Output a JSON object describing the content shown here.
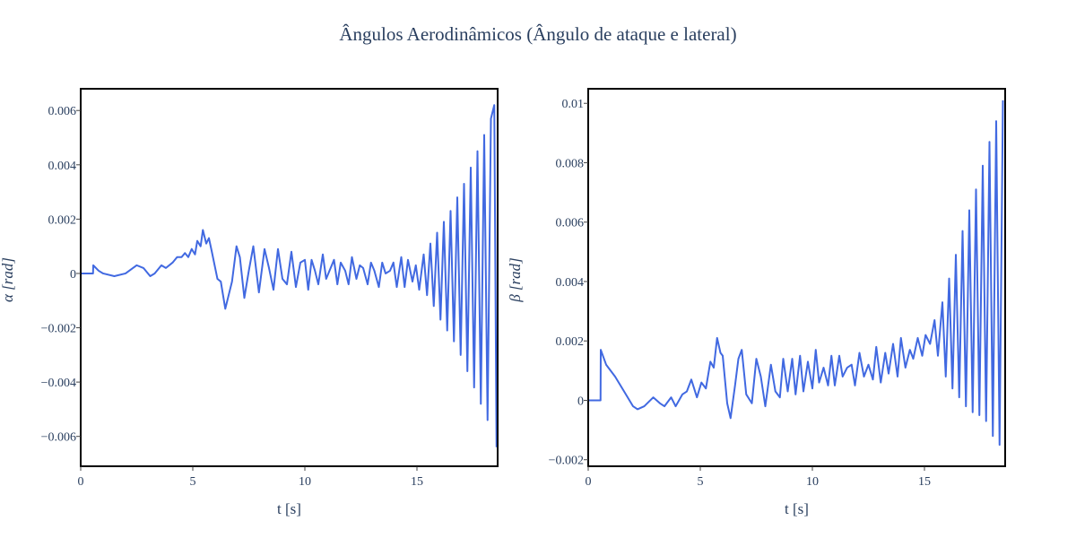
{
  "title": "Ângulos Aerodinâmicos (Ângulo de ataque e lateral)",
  "line_color": "#4169E1",
  "chart_data": [
    {
      "type": "line",
      "xlabel": "t [s]",
      "ylabel_symbol": "α",
      "ylabel_unit": "[rad]",
      "xlim": [
        0,
        18.6
      ],
      "ylim": [
        -0.0071,
        0.0068
      ],
      "xticks": [
        0,
        5,
        10,
        15
      ],
      "xtick_labels": [
        "0",
        "5",
        "10",
        "15"
      ],
      "yticks": [
        -0.006,
        -0.004,
        -0.002,
        0,
        0.002,
        0.004,
        0.006
      ],
      "ytick_labels": [
        "−0.006",
        "−0.004",
        "−0.002",
        "0",
        "0.002",
        "0.004",
        "0.006"
      ],
      "grid": false,
      "x": [
        0,
        0.55,
        0.56,
        0.8,
        1.0,
        1.5,
        2.0,
        2.5,
        2.8,
        3.1,
        3.3,
        3.6,
        3.8,
        4.1,
        4.3,
        4.5,
        4.65,
        4.8,
        4.95,
        5.1,
        5.2,
        5.35,
        5.45,
        5.6,
        5.72,
        5.85,
        6.0,
        6.1,
        6.25,
        6.45,
        6.6,
        6.75,
        6.95,
        7.1,
        7.3,
        7.5,
        7.7,
        7.95,
        8.2,
        8.4,
        8.6,
        8.8,
        9.0,
        9.2,
        9.4,
        9.6,
        9.8,
        10.0,
        10.15,
        10.3,
        10.45,
        10.6,
        10.8,
        10.95,
        11.1,
        11.3,
        11.45,
        11.6,
        11.8,
        11.95,
        12.1,
        12.3,
        12.45,
        12.6,
        12.8,
        12.95,
        13.1,
        13.3,
        13.45,
        13.6,
        13.8,
        13.95,
        14.1,
        14.3,
        14.45,
        14.6,
        14.8,
        14.95,
        15.1,
        15.3,
        15.45,
        15.6,
        15.75,
        15.9,
        16.05,
        16.2,
        16.35,
        16.5,
        16.65,
        16.8,
        16.95,
        17.1,
        17.25,
        17.4,
        17.55,
        17.7,
        17.85,
        18.0,
        18.15,
        18.3,
        18.45,
        18.55
      ],
      "y": [
        0,
        0,
        0.0003,
        0.0001,
        0,
        -0.0001,
        0,
        0.0003,
        0.0002,
        -0.0001,
        0,
        0.0003,
        0.0002,
        0.0004,
        0.0006,
        0.0006,
        0.00075,
        0.0006,
        0.0009,
        0.0007,
        0.0012,
        0.001,
        0.0016,
        0.0011,
        0.0013,
        0.0008,
        0.0002,
        -0.0002,
        -0.0003,
        -0.0013,
        -0.0008,
        -0.0003,
        0.001,
        0.0006,
        -0.0009,
        0.0001,
        0.001,
        -0.0007,
        0.0009,
        0.0002,
        -0.0006,
        0.0009,
        -0.0002,
        -0.0004,
        0.0008,
        -0.0005,
        0.0004,
        0.0005,
        -0.0006,
        0.0005,
        0.0001,
        -0.0004,
        0.0007,
        -0.0002,
        0.0001,
        0.0005,
        -0.0004,
        0.0004,
        0.0001,
        -0.0004,
        0.0006,
        -0.0002,
        0.0003,
        0.0002,
        -0.0004,
        0.0004,
        0.0001,
        -0.0005,
        0.0004,
        0,
        0.0001,
        0.0004,
        -0.0005,
        0.0006,
        -0.0005,
        0.0005,
        -0.0003,
        0.0003,
        -0.0006,
        0.0007,
        -0.0008,
        0.0011,
        -0.0012,
        0.0015,
        -0.0017,
        0.0019,
        -0.0021,
        0.0023,
        -0.0025,
        0.0028,
        -0.003,
        0.0033,
        -0.0036,
        0.0039,
        -0.0042,
        0.0045,
        -0.0048,
        0.0051,
        -0.0054,
        0.0057,
        0.0062,
        -0.0064
      ]
    },
    {
      "type": "line",
      "xlabel": "t [s]",
      "ylabel_symbol": "β",
      "ylabel_unit": "[rad]",
      "xlim": [
        0,
        18.6
      ],
      "ylim": [
        -0.00222,
        0.01049
      ],
      "xticks": [
        0,
        5,
        10,
        15
      ],
      "xtick_labels": [
        "0",
        "5",
        "10",
        "15"
      ],
      "yticks": [
        -0.002,
        0,
        0.002,
        0.004,
        0.006,
        0.008,
        0.01
      ],
      "ytick_labels": [
        "−0.002",
        "0",
        "0.002",
        "0.004",
        "0.006",
        "0.008",
        "0.01"
      ],
      "grid": false,
      "x": [
        0,
        0.55,
        0.56,
        0.8,
        1.2,
        1.6,
        2.0,
        2.2,
        2.5,
        2.9,
        3.2,
        3.4,
        3.7,
        3.9,
        4.2,
        4.4,
        4.6,
        4.85,
        5.05,
        5.25,
        5.45,
        5.6,
        5.75,
        5.9,
        6.0,
        6.2,
        6.35,
        6.55,
        6.7,
        6.85,
        7.05,
        7.3,
        7.5,
        7.7,
        7.9,
        8.15,
        8.35,
        8.55,
        8.7,
        8.9,
        9.1,
        9.25,
        9.45,
        9.6,
        9.8,
        10.0,
        10.15,
        10.3,
        10.5,
        10.7,
        10.85,
        11.0,
        11.2,
        11.35,
        11.55,
        11.75,
        11.9,
        12.1,
        12.3,
        12.5,
        12.7,
        12.85,
        13.05,
        13.25,
        13.4,
        13.6,
        13.8,
        13.95,
        14.15,
        14.35,
        14.5,
        14.7,
        14.9,
        15.05,
        15.25,
        15.45,
        15.6,
        15.8,
        15.95,
        16.1,
        16.25,
        16.4,
        16.55,
        16.7,
        16.85,
        17.0,
        17.15,
        17.3,
        17.45,
        17.6,
        17.75,
        17.9,
        18.05,
        18.2,
        18.35,
        18.5
      ],
      "y": [
        0,
        0,
        0.0017,
        0.0012,
        0.0008,
        0.0003,
        -0.0002,
        -0.0003,
        -0.0002,
        0.0001,
        -0.0001,
        -0.0002,
        0.0001,
        -0.0002,
        0.0002,
        0.0003,
        0.0007,
        0.0001,
        0.0006,
        0.0004,
        0.0013,
        0.0011,
        0.0021,
        0.0016,
        0.0015,
        -0.0001,
        -0.0006,
        0.0005,
        0.0014,
        0.0017,
        0.0002,
        -0.0001,
        0.0014,
        0.0008,
        -0.0002,
        0.0012,
        0.0003,
        0.0001,
        0.0014,
        0.0003,
        0.0014,
        0.0002,
        0.0015,
        0.0003,
        0.0013,
        0.0004,
        0.0017,
        0.0006,
        0.0011,
        0.0005,
        0.0015,
        0.0005,
        0.0015,
        0.0008,
        0.0011,
        0.0012,
        0.0005,
        0.0016,
        0.0008,
        0.0012,
        0.0007,
        0.0018,
        0.0006,
        0.0016,
        0.0009,
        0.0019,
        0.0008,
        0.0021,
        0.0011,
        0.0017,
        0.0014,
        0.0021,
        0.0015,
        0.0022,
        0.0019,
        0.0027,
        0.0015,
        0.0033,
        0.0008,
        0.0041,
        0.0004,
        0.0049,
        0.0001,
        0.0057,
        -0.0002,
        0.0064,
        -0.0004,
        0.0071,
        -0.0005,
        0.0079,
        -0.0007,
        0.0087,
        -0.0012,
        0.0094,
        -0.0015,
        0.0101
      ]
    }
  ]
}
